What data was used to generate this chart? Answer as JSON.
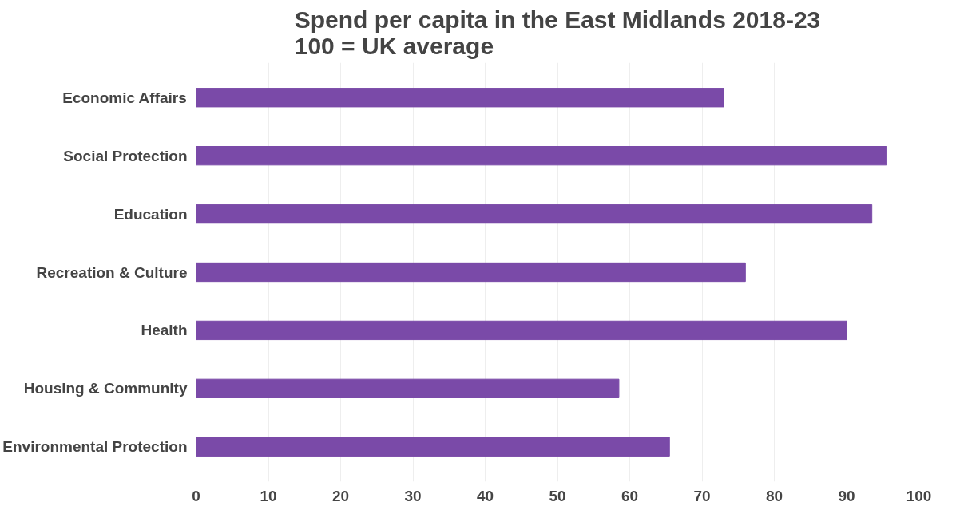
{
  "chart_data": {
    "type": "bar",
    "orientation": "horizontal",
    "title": "Spend per capita in the East Midlands 2018-23\n100 = UK average",
    "categories": [
      "Economic Affairs",
      "Social Protection",
      "Education",
      "Recreation & Culture",
      "Health",
      "Housing & Community",
      "Environmental Protection"
    ],
    "values": [
      73,
      95.5,
      93.5,
      76,
      90,
      58.5,
      65.5
    ],
    "color": "#7a4aa8",
    "xlim": [
      0,
      100
    ],
    "xticks": [
      0,
      10,
      20,
      30,
      40,
      50,
      60,
      70,
      80,
      90,
      100
    ],
    "grid": "x"
  }
}
